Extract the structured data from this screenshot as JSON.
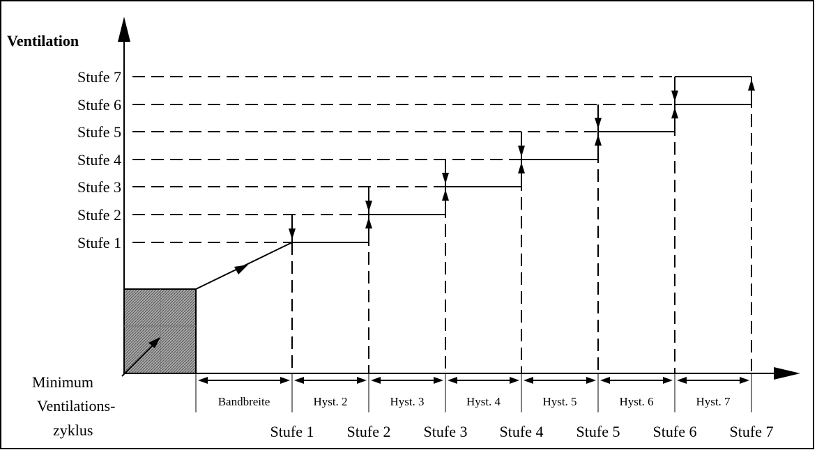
{
  "y_axis_title": "Ventilation",
  "y_levels": [
    "Stufe 1",
    "Stufe 2",
    "Stufe 3",
    "Stufe 4",
    "Stufe 5",
    "Stufe 6",
    "Stufe 7"
  ],
  "x_stage_labels": [
    "Stufe 1",
    "Stufe 2",
    "Stufe 3",
    "Stufe 4",
    "Stufe 5",
    "Stufe 6",
    "Stufe 7"
  ],
  "span_labels": [
    "Bandbreite",
    "Hyst. 2",
    "Hyst. 3",
    "Hyst. 4",
    "Hyst. 5",
    "Hyst. 6",
    "Hyst. 7"
  ],
  "min_label": [
    "Minimum",
    "Ventilations-",
    "zyklus"
  ],
  "colors": {
    "line": "#000000",
    "background": "#ffffff",
    "box_fill": "#8a8a8a"
  }
}
